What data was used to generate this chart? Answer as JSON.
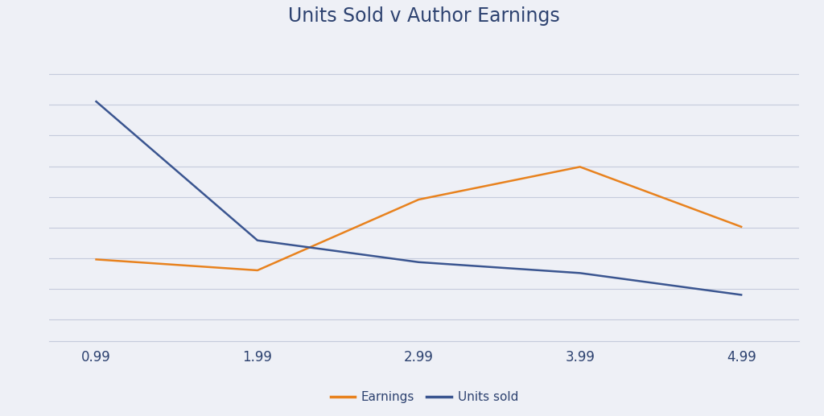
{
  "title": "Units Sold v Author Earnings",
  "x_labels": [
    "0.99",
    "1.99",
    "2.99",
    "3.99",
    "4.99"
  ],
  "x_values": [
    0.99,
    1.99,
    2.99,
    3.99,
    4.99
  ],
  "earnings": [
    0.3,
    0.26,
    0.52,
    0.64,
    0.42
  ],
  "units_sold": [
    0.88,
    0.37,
    0.29,
    0.25,
    0.17
  ],
  "earnings_color": "#E8821E",
  "units_sold_color": "#3A5590",
  "background_color": "#EEF0F6",
  "grid_color": "#C5CBDC",
  "title_color": "#2D4270",
  "title_fontsize": 17,
  "legend_labels": [
    "Earnings",
    "Units sold"
  ],
  "line_width": 1.8,
  "ylim_min": 0.0,
  "ylim_max": 1.1,
  "xlim_min": 0.7,
  "xlim_max": 5.35,
  "num_gridlines": 9,
  "gridline_ymin": 0.08,
  "gridline_ymax": 0.98
}
